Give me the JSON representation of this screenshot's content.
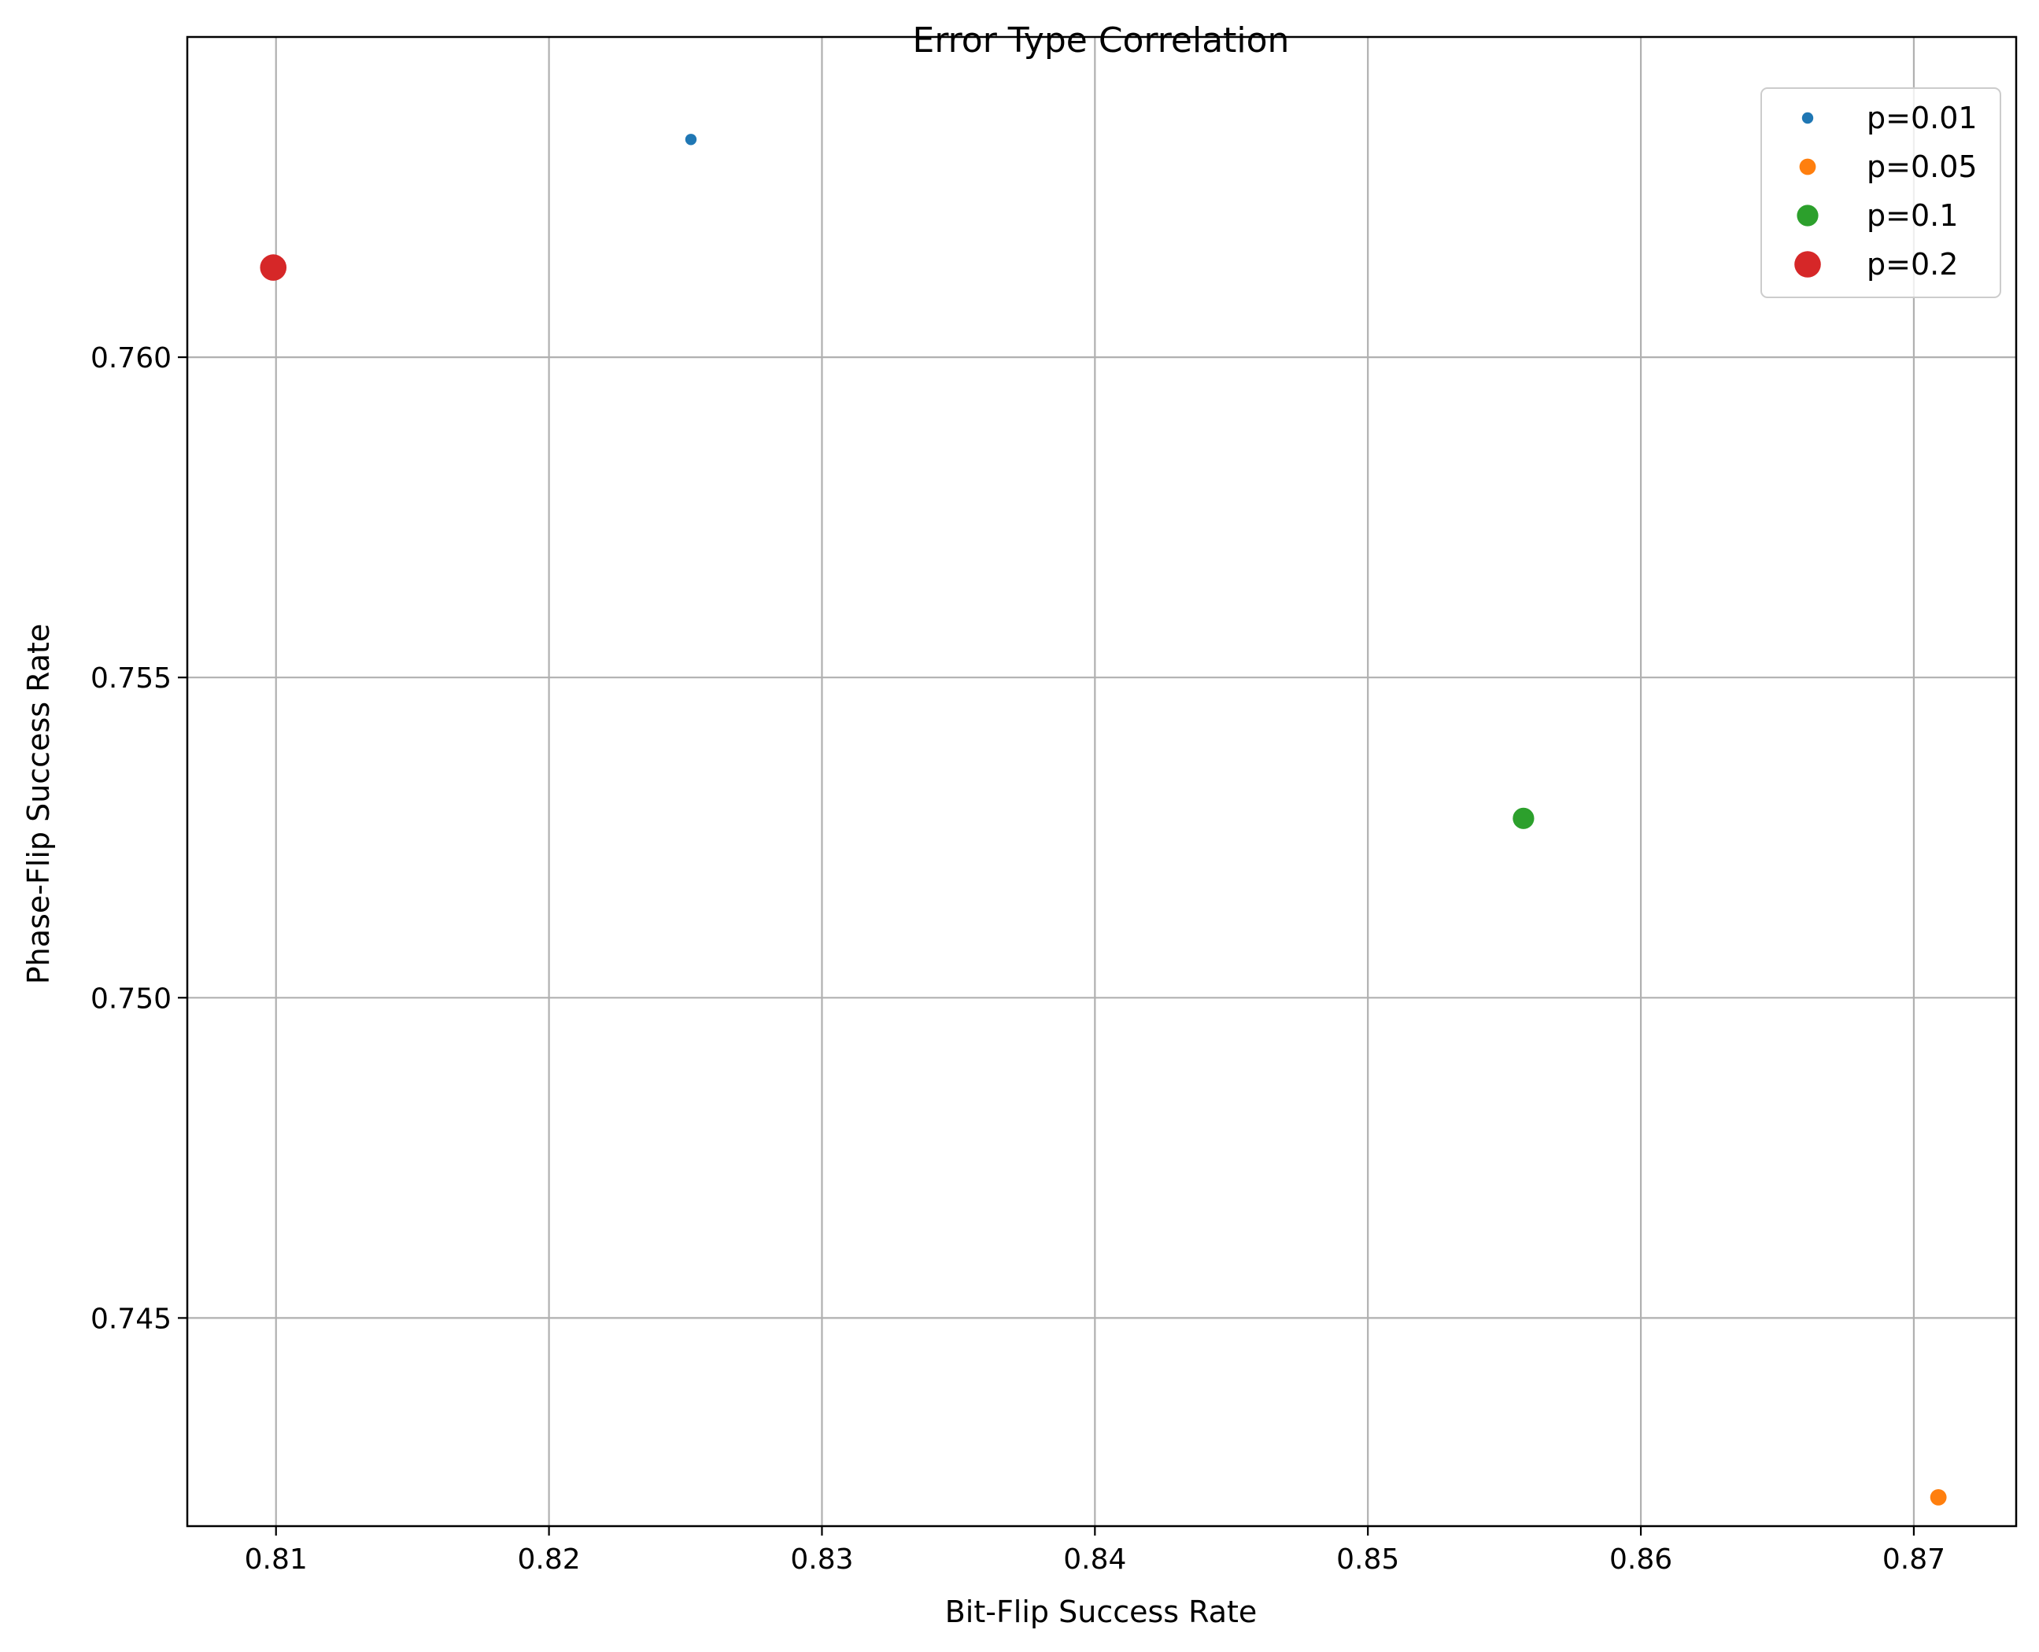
{
  "chart_data": {
    "type": "scatter",
    "title": "Error Type Correlation",
    "xlabel": "Bit-Flip Success Rate",
    "ylabel": "Phase-Flip Success Rate",
    "xlim": [
      0.80675,
      0.87375
    ],
    "ylim": [
      0.74175,
      0.765
    ],
    "xticks": [
      {
        "value": 0.81,
        "label": "0.81"
      },
      {
        "value": 0.82,
        "label": "0.82"
      },
      {
        "value": 0.83,
        "label": "0.83"
      },
      {
        "value": 0.84,
        "label": "0.84"
      },
      {
        "value": 0.85,
        "label": "0.85"
      },
      {
        "value": 0.86,
        "label": "0.86"
      },
      {
        "value": 0.87,
        "label": "0.87"
      }
    ],
    "yticks": [
      {
        "value": 0.745,
        "label": "0.745"
      },
      {
        "value": 0.75,
        "label": "0.750"
      },
      {
        "value": 0.755,
        "label": "0.755"
      },
      {
        "value": 0.76,
        "label": "0.760"
      }
    ],
    "grid": true,
    "legend_position": "top-right",
    "series": [
      {
        "name": "p=0.01",
        "color": "#1f77b4",
        "marker_size": 1,
        "points": [
          {
            "x": 0.8252,
            "y": 0.7634
          }
        ]
      },
      {
        "name": "p=0.05",
        "color": "#ff7f0e",
        "marker_size": 2,
        "points": [
          {
            "x": 0.8709,
            "y": 0.7422
          }
        ]
      },
      {
        "name": "p=0.1",
        "color": "#2ca02c",
        "marker_size": 3,
        "points": [
          {
            "x": 0.8557,
            "y": 0.7528
          }
        ]
      },
      {
        "name": "p=0.2",
        "color": "#d62728",
        "marker_size": 4,
        "points": [
          {
            "x": 0.8099,
            "y": 0.7614
          }
        ]
      }
    ]
  }
}
